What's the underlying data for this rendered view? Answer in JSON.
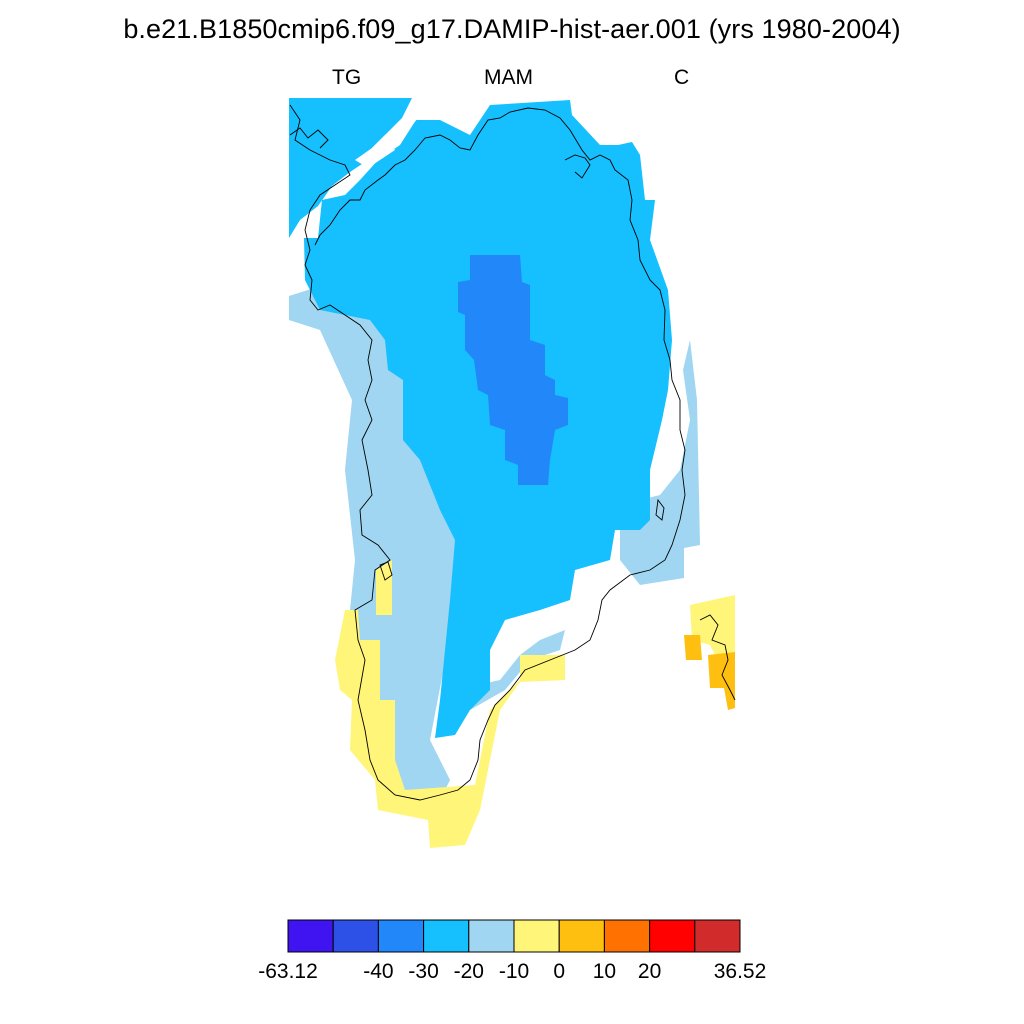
{
  "title": "b.e21.B1850cmip6.f09_g17.DAMIP-hist-aer.001 (yrs 1980-2004)",
  "subtitle_left": "TG",
  "subtitle_center": "MAM",
  "subtitle_right": "C",
  "colors": {
    "less_than_-40": "#3f14f0",
    "-40_to_-30": "#2d50e6",
    "-30_to_-20": "#2288fa",
    "-20_to_-10": "#16bffe",
    "-10_to_0": "#a0d6f1",
    "0_to_10": "#fff578",
    "10_to_20": "#ffbf10",
    "20_to_30": "#ff7202",
    "30_to_36.52": "#fe0100",
    "max_bin": "#d22b2b"
  },
  "colorbar": {
    "bin_colors": [
      "#3f14f0",
      "#2d50e6",
      "#2288fa",
      "#16bffe",
      "#a0d6f1",
      "#fff578",
      "#ffbf10",
      "#ff7202",
      "#fe0100",
      "#d22b2b"
    ],
    "labels": [
      {
        "text": "-63.12",
        "edge": 0
      },
      {
        "text": "-40",
        "edge": 2
      },
      {
        "text": "-30",
        "edge": 3
      },
      {
        "text": "-20",
        "edge": 4
      },
      {
        "text": "-10",
        "edge": 5
      },
      {
        "text": "0",
        "edge": 6
      },
      {
        "text": "10",
        "edge": 7
      },
      {
        "text": "20",
        "edge": 8
      },
      {
        "text": "36.52",
        "edge": 10
      }
    ]
  }
}
